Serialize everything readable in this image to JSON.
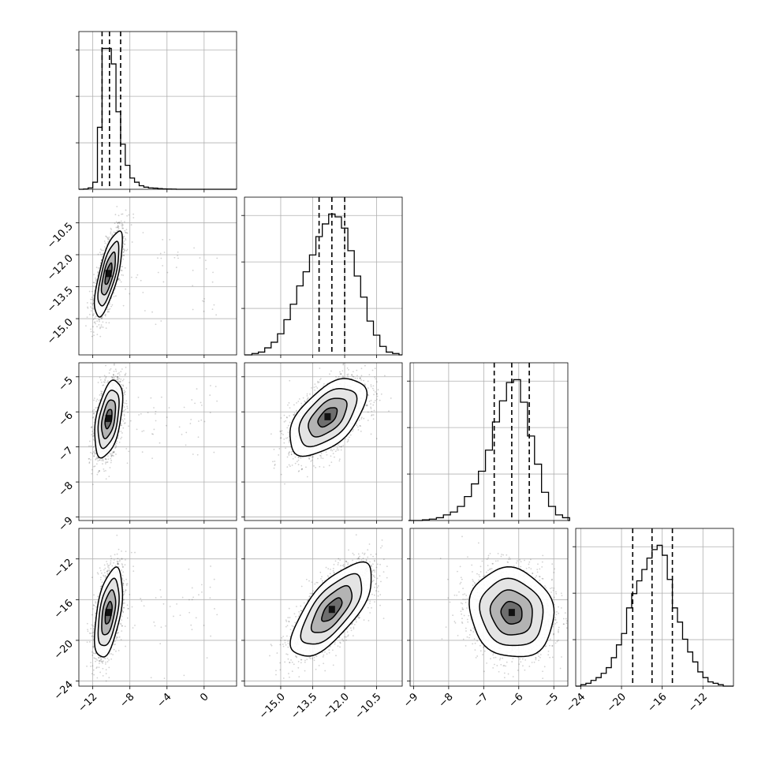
{
  "chart_data": {
    "type": "corner",
    "n_params": 4,
    "grid": true,
    "axes": [
      {
        "ticks": [
          -12,
          -8,
          -4,
          0
        ],
        "labels": [
          "−12",
          "−8",
          "−4",
          "0"
        ],
        "lim": [
          -13.5,
          3.5
        ]
      },
      {
        "ticks": [
          -15.0,
          -13.5,
          -12.0,
          -10.5
        ],
        "labels": [
          "−15.0",
          "−13.5",
          "−12.0",
          "−10.5"
        ],
        "lim": [
          -16.7,
          -9.3
        ]
      },
      {
        "ticks": [
          -9,
          -8,
          -7,
          -6,
          -5
        ],
        "labels": [
          "−9",
          "−8",
          "−7",
          "−6",
          "−5"
        ],
        "lim": [
          -9.1,
          -4.6
        ]
      },
      {
        "ticks": [
          -24,
          -20,
          -16,
          -12
        ],
        "labels": [
          "−24",
          "−20",
          "−16",
          "−12"
        ],
        "lim": [
          -24.5,
          -9.0
        ]
      }
    ],
    "quantiles": [
      [
        -11.0,
        -10.2,
        -9.0
      ],
      [
        -13.2,
        -12.6,
        -12.0
      ],
      [
        -6.7,
        -6.2,
        -5.7
      ],
      [
        -18.9,
        -17.0,
        -15.0
      ]
    ],
    "histograms": [
      {
        "x": [
          -12.75,
          -12.25,
          -11.75,
          -11.25,
          -10.75,
          -10.25,
          -9.75,
          -9.25,
          -8.75,
          -8.25,
          -7.75,
          -7.25,
          -6.75,
          -6.25,
          -5.75,
          -5.25,
          -4.75,
          -4.25,
          -3.75,
          -3.25
        ],
        "counts": [
          0.002,
          0.01,
          0.05,
          0.44,
          1.0,
          1.0,
          0.89,
          0.55,
          0.32,
          0.17,
          0.08,
          0.05,
          0.025,
          0.015,
          0.01,
          0.008,
          0.005,
          0.003,
          0.002,
          0.001
        ]
      },
      {
        "x": [
          -16.5,
          -16.2,
          -15.9,
          -15.6,
          -15.3,
          -15.0,
          -14.7,
          -14.4,
          -14.1,
          -13.8,
          -13.5,
          -13.2,
          -12.9,
          -12.6,
          -12.3,
          -12.0,
          -11.7,
          -11.4,
          -11.1,
          -10.8,
          -10.5,
          -10.2,
          -9.9,
          -9.6
        ],
        "counts": [
          0.0,
          0.01,
          0.02,
          0.05,
          0.09,
          0.15,
          0.25,
          0.36,
          0.49,
          0.59,
          0.71,
          0.84,
          0.93,
          1.0,
          0.98,
          0.9,
          0.74,
          0.56,
          0.41,
          0.24,
          0.14,
          0.06,
          0.02,
          0.01
        ]
      },
      {
        "x": [
          -9.05,
          -8.85,
          -8.65,
          -8.45,
          -8.25,
          -8.05,
          -7.85,
          -7.65,
          -7.45,
          -7.25,
          -7.05,
          -6.85,
          -6.65,
          -6.45,
          -6.25,
          -6.05,
          -5.85,
          -5.65,
          -5.45,
          -5.25,
          -5.05,
          -4.85,
          -4.65
        ],
        "counts": [
          0.0,
          0.0,
          0.005,
          0.01,
          0.02,
          0.04,
          0.06,
          0.1,
          0.17,
          0.26,
          0.35,
          0.5,
          0.7,
          0.85,
          0.98,
          1.0,
          0.84,
          0.6,
          0.4,
          0.2,
          0.1,
          0.04,
          0.02
        ]
      },
      {
        "x": [
          -24.25,
          -23.75,
          -23.25,
          -22.75,
          -22.25,
          -21.75,
          -21.25,
          -20.75,
          -20.25,
          -19.75,
          -19.25,
          -18.75,
          -18.25,
          -17.75,
          -17.25,
          -16.75,
          -16.25,
          -15.75,
          -15.25,
          -14.75,
          -14.25,
          -13.75,
          -13.25,
          -12.75,
          -12.25,
          -11.75,
          -11.25,
          -10.75,
          -10.25,
          -9.75
        ],
        "counts": [
          0.0,
          0.01,
          0.02,
          0.04,
          0.06,
          0.09,
          0.13,
          0.2,
          0.29,
          0.37,
          0.55,
          0.65,
          0.74,
          0.82,
          0.9,
          0.96,
          0.99,
          0.92,
          0.75,
          0.55,
          0.45,
          0.33,
          0.24,
          0.17,
          0.1,
          0.06,
          0.03,
          0.02,
          0.01,
          0.0
        ]
      }
    ],
    "pairs": [
      {
        "row": 1,
        "col": 0,
        "mean": [
          -10.3,
          -12.9
        ],
        "std": [
          0.75,
          1.0
        ],
        "corr": 0.72,
        "n_points": 1800,
        "outlier_x_max": 1.5
      },
      {
        "row": 2,
        "col": 0,
        "mean": [
          -10.3,
          -6.2
        ],
        "std": [
          0.75,
          0.55
        ],
        "corr": 0.45,
        "n_points": 1800,
        "outlier_x_max": 1.5
      },
      {
        "row": 2,
        "col": 1,
        "mean": [
          -12.8,
          -6.15
        ],
        "std": [
          0.9,
          0.55
        ],
        "corr": 0.55,
        "n_points": 2000
      },
      {
        "row": 3,
        "col": 0,
        "mean": [
          -10.3,
          -17.3
        ],
        "std": [
          0.75,
          2.2
        ],
        "corr": 0.5,
        "n_points": 1800,
        "outlier_x_max": 1.5
      },
      {
        "row": 3,
        "col": 1,
        "mean": [
          -12.6,
          -17.0
        ],
        "std": [
          0.95,
          2.3
        ],
        "corr": 0.7,
        "n_points": 2000
      },
      {
        "row": 3,
        "col": 2,
        "mean": [
          -6.2,
          -17.3
        ],
        "std": [
          0.6,
          2.2
        ],
        "corr": -0.1,
        "n_points": 2000
      }
    ]
  }
}
